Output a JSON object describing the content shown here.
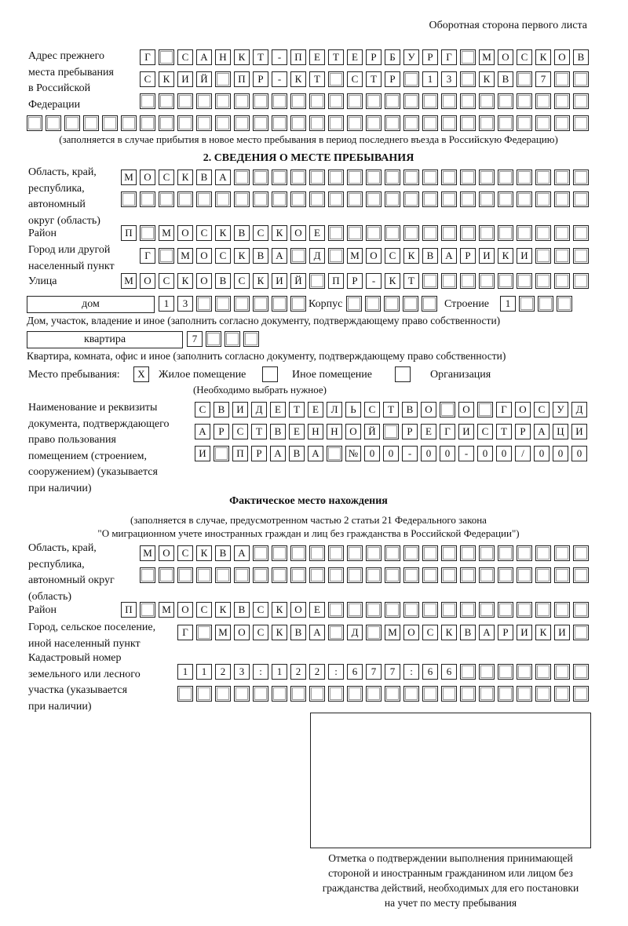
{
  "header": "Оборотная сторона первого листа",
  "prev": {
    "label": [
      "Адрес прежнего",
      "места пребывания",
      "в Российской",
      "Федерации"
    ],
    "rows": [
      "Г САНКТ-ПЕТЕРБУРГ МОСКОВ",
      "СКИЙ ПР-КТ СТР 13 КВ 7",
      "",
      ""
    ],
    "note": "(заполняется в случае прибытия в новое место пребывания в период последнего въезда в Российскую Федерацию)"
  },
  "s2": {
    "title": "2. СВЕДЕНИЯ О МЕСТЕ ПРЕБЫВАНИЯ",
    "region_label": [
      "Область, край,",
      "республика,",
      "автономный",
      "округ (область)"
    ],
    "region_rows": [
      "МОСКВА",
      ""
    ],
    "district_label": "Район",
    "district": "П МОСКВСКОЕ",
    "city_label": [
      "Город или другой",
      "населенный пункт"
    ],
    "city": "Г МОСКВА Д МОСКВАРИКИ",
    "street_label": "Улица",
    "street": "МОСКОВСКИЙ ПР-КТ",
    "house_type": "дом",
    "house": "13",
    "korpus_label": "Корпус",
    "korpus": "",
    "stroenie_label": "Строение",
    "stroenie": "1",
    "house_note": "Дом, участок, владение и иное (заполнить согласно документу, подтверждающему право собственности)",
    "flat_type": "квартира",
    "flat": "7",
    "flat_note": "Квартира, комната, офис и иное (заполнить согласно документу, подтверждающему право собственности)",
    "place_label": "Место пребывания:",
    "place_options": [
      {
        "label": "Жилое помещение",
        "mark": "X"
      },
      {
        "label": "Иное помещение",
        "mark": ""
      },
      {
        "label": "Организация",
        "mark": ""
      }
    ],
    "place_note": "(Необходимо выбрать нужное)",
    "doc_label": [
      "Наименование и реквизиты",
      "документа, подтверждающего",
      "право пользования",
      "помещением (строением,",
      "сооружением) (указывается",
      "при наличии)"
    ],
    "doc_rows": [
      "СВИДЕТЕЛЬСТВО О ГОСУД",
      "АРСТВЕННОЙ РЕГИСТРАЦИ",
      "И ПРАВА №00-00-00/000"
    ]
  },
  "actual": {
    "title": "Фактическое место нахождения",
    "note": [
      "(заполняется в случае, предусмотренном частью 2 статьи 21 Федерального закона",
      "\"О миграционном учете иностранных граждан и лиц без гражданства в Российской Федерации\")"
    ],
    "region_label": [
      "Область, край,",
      "республика,",
      "автономный округ",
      "(область)"
    ],
    "region_rows": [
      "МОСКВА",
      ""
    ],
    "district_label": "Район",
    "district": "П МОСКВСКОЕ",
    "city_label": [
      "Город, сельское поселение,",
      "иной населенный пункт"
    ],
    "city": "Г МОСКВА Д МОСКВАРИКИ",
    "cadastral_label": [
      "Кадастровый номер",
      "земельного или лесного",
      "участка (указывается",
      "при наличии)"
    ],
    "cadastral_rows": [
      "1123:122:677:66",
      ""
    ],
    "stamp_caption": [
      "Отметка о подтверждении выполнения принимающей",
      "стороной и иностранным гражданином или лицом без",
      "гражданства действий, необходимых для его постановки",
      "на учет по месту пребывания"
    ]
  }
}
